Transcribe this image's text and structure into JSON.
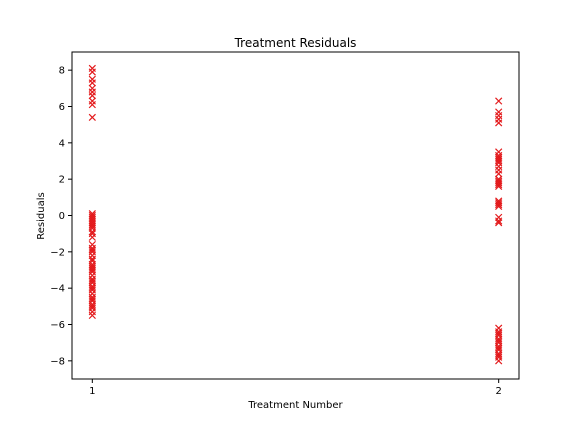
{
  "chart_data": {
    "type": "scatter",
    "title": "Treatment Residuals",
    "xlabel": "Treatment Number",
    "ylabel": "Residuals",
    "xlim": [
      0.95,
      2.05
    ],
    "ylim": [
      -9,
      9
    ],
    "xticks": [
      1,
      2
    ],
    "yticks": [
      -8,
      -6,
      -4,
      -2,
      0,
      2,
      4,
      6,
      8
    ],
    "grid": false,
    "marker": "x",
    "color": "#e31a1c",
    "series": [
      {
        "x": [
          1,
          1,
          1,
          1,
          1,
          1,
          1,
          1,
          1,
          1,
          1,
          1,
          1,
          1,
          1,
          1,
          1,
          1,
          1,
          1,
          1,
          1,
          1,
          1,
          1,
          1,
          1,
          1,
          1,
          1,
          1,
          1,
          1,
          1,
          1,
          1,
          1,
          1,
          1,
          1,
          1,
          1,
          1,
          1,
          1,
          1,
          1,
          1,
          1,
          1
        ],
        "y": [
          8.1,
          7.9,
          7.5,
          7.3,
          7.0,
          6.8,
          6.6,
          6.3,
          6.1,
          5.4,
          0.1,
          0.0,
          -0.1,
          -0.2,
          -0.3,
          -0.4,
          -0.5,
          -0.7,
          -0.9,
          -1.0,
          -1.6,
          -1.8,
          -2.0,
          -2.2,
          -2.5,
          -2.7,
          -2.9,
          -3.0,
          -3.1,
          -3.3,
          -3.5,
          -3.7,
          -3.9,
          -4.1,
          -4.3,
          -4.5,
          -4.7,
          -4.9,
          -5.1,
          -5.3,
          -5.5,
          -1.2,
          -2.4,
          -3.6,
          -4.0,
          -1.9,
          -0.6,
          -2.8,
          -4.6,
          -5.0
        ]
      },
      {
        "x": [
          2,
          2,
          2,
          2,
          2,
          2,
          2,
          2,
          2,
          2,
          2,
          2,
          2,
          2,
          2,
          2,
          2,
          2,
          2,
          2,
          2,
          2,
          2,
          2,
          2,
          2,
          2,
          2,
          2,
          2,
          2,
          2,
          2,
          2,
          2,
          2,
          2,
          2,
          2,
          2
        ],
        "y": [
          6.3,
          5.7,
          5.5,
          5.3,
          5.1,
          3.5,
          3.3,
          3.1,
          3.0,
          2.9,
          2.7,
          2.5,
          2.3,
          2.0,
          1.8,
          1.7,
          1.6,
          0.8,
          0.6,
          0.5,
          -0.1,
          -0.3,
          -0.4,
          -6.2,
          -6.4,
          -6.6,
          -6.8,
          -7.0,
          -7.2,
          -7.4,
          -7.6,
          -7.8,
          -8.0,
          -7.3,
          -6.9,
          -7.7,
          -6.5,
          1.9,
          3.2,
          0.7
        ]
      }
    ]
  }
}
